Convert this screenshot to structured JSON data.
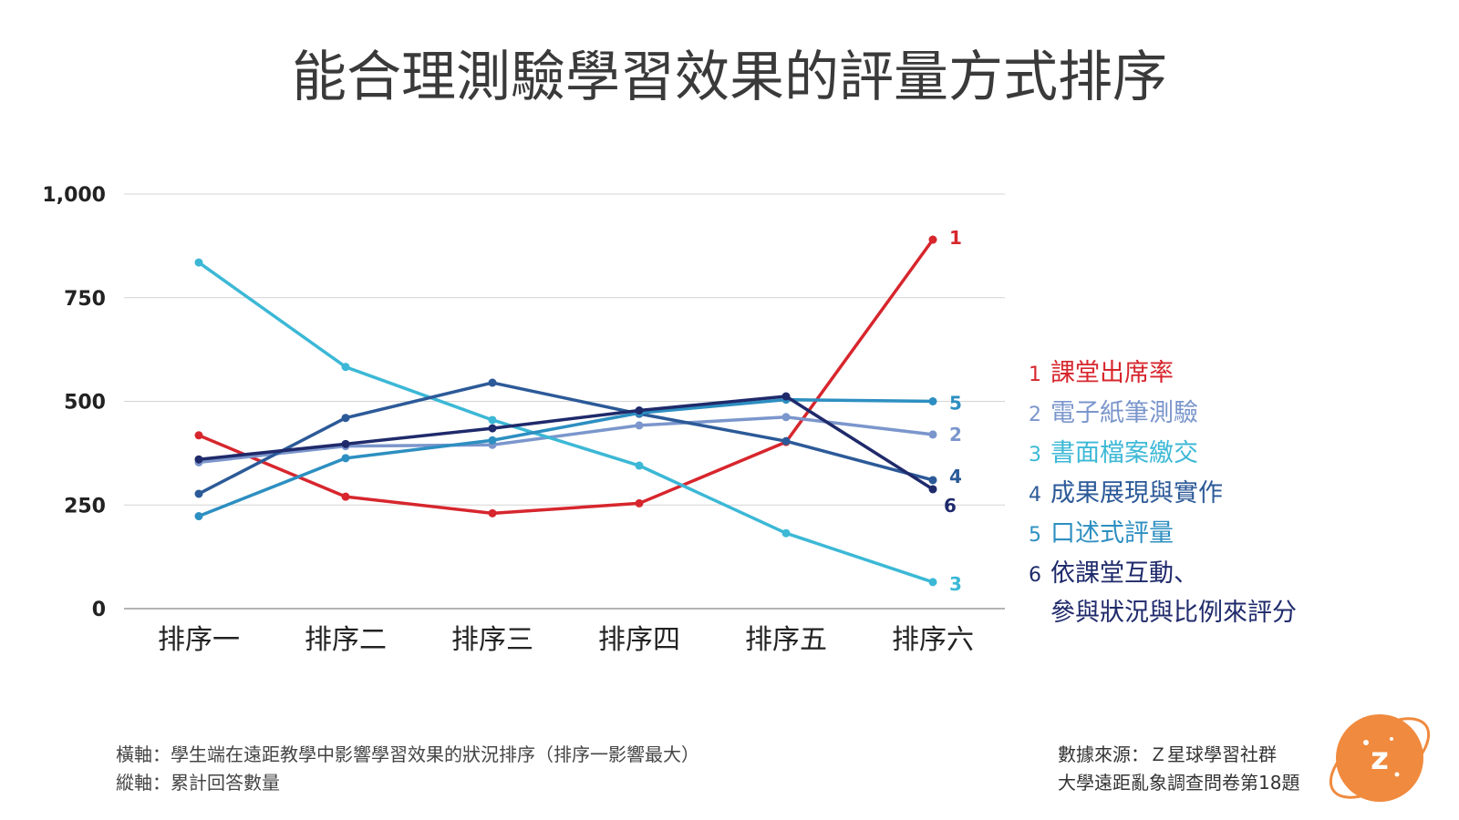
{
  "title": "能合理測驗學習效果的評量方式排序",
  "chart_data": {
    "type": "line",
    "title": "能合理測驗學習效果的評量方式排序",
    "categories": [
      "排序一",
      "排序二",
      "排序三",
      "排序四",
      "排序五",
      "排序六"
    ],
    "y_ticks": [
      "0",
      "250",
      "500",
      "750",
      "1,000"
    ],
    "ylim": [
      0,
      1000
    ],
    "grid": "horizontal",
    "legend_position": "right",
    "series": [
      {
        "id": "1",
        "name": "課堂出席率",
        "color": "#d7262d",
        "values": [
          418,
          270,
          230,
          254,
          402,
          890
        ]
      },
      {
        "id": "2",
        "name": "電子紙筆測驗",
        "color": "#7b96cc",
        "values": [
          353,
          392,
          395,
          442,
          462,
          420
        ]
      },
      {
        "id": "3",
        "name": "書面檔案繳交",
        "color": "#3cb8d6",
        "values": [
          835,
          583,
          455,
          345,
          182,
          64
        ]
      },
      {
        "id": "4",
        "name": "成果展現與實作",
        "color": "#2c5a98",
        "values": [
          277,
          460,
          545,
          470,
          404,
          310
        ]
      },
      {
        "id": "5",
        "name": "口述式評量",
        "color": "#2d8fc1",
        "values": [
          223,
          363,
          406,
          472,
          504,
          500
        ]
      },
      {
        "id": "6",
        "name": "依課堂互動、參與狀況與比例來評分",
        "color": "#1f2a6b",
        "values": [
          360,
          397,
          435,
          478,
          512,
          288
        ]
      }
    ],
    "legend": [
      {
        "num": "1",
        "lines": [
          "課堂出席率"
        ]
      },
      {
        "num": "2",
        "lines": [
          "電子紙筆測驗"
        ]
      },
      {
        "num": "3",
        "lines": [
          "書面檔案繳交"
        ]
      },
      {
        "num": "4",
        "lines": [
          "成果展現與實作"
        ]
      },
      {
        "num": "5",
        "lines": [
          "口述式評量"
        ]
      },
      {
        "num": "6",
        "lines": [
          "依課堂互動、",
          "參與狀況與比例來評分"
        ]
      }
    ]
  },
  "notes": {
    "x_axis": "橫軸：學生端在遠距教學中影響學習效果的狀況排序（排序一影響最大）",
    "y_axis": "縱軸：累計回答數量"
  },
  "source": {
    "line1": "數據來源：Ｚ星球學習社群",
    "line2": "大學遠距亂象調查問卷第18題"
  },
  "logo": {
    "letter": "z",
    "color": "#f08a3e"
  }
}
